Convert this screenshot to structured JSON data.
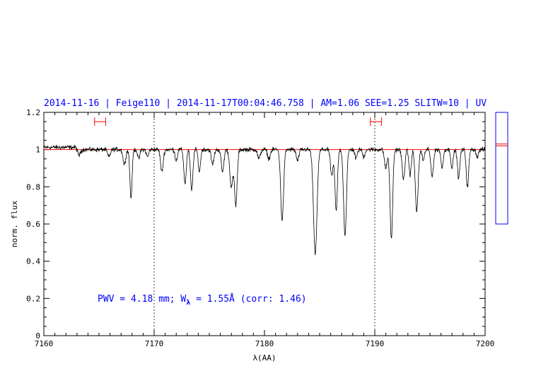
{
  "chart_data": {
    "type": "line",
    "title": "2014-11-16 | Feige110 | 2014-11-17T00:04:46.758 | AM=1.06  SEE=1.25  SLITW=10 | UV",
    "xlabel": "λ(AA)",
    "ylabel": "norm. flux",
    "xlim": [
      7160,
      7200
    ],
    "ylim": [
      0,
      1.2
    ],
    "x_ticks": [
      7160,
      7170,
      7180,
      7190,
      7200
    ],
    "x_tick_labels": [
      "7160",
      "7170",
      "7180",
      "7190",
      "7200"
    ],
    "y_ticks": [
      0,
      0.2,
      0.4,
      0.6,
      0.8,
      1,
      1.2
    ],
    "y_tick_labels": [
      "0",
      "0.2",
      "0.4",
      "0.6",
      "0.8",
      "1",
      "1.2"
    ],
    "grid": false,
    "continuum_level": 1.0,
    "vertical_markers": [
      7170,
      7190
    ],
    "range_markers": [
      {
        "from": 7164.6,
        "to": 7165.6,
        "y": 1.15
      },
      {
        "from": 7189.6,
        "to": 7190.6,
        "y": 1.15
      }
    ],
    "annotation": {
      "text_prefix": "PWV = 4.18 mm; W",
      "subscript": "λ",
      "text_suffix": " = 1.55Å (corr: 1.46)"
    },
    "absorption_lines": [
      {
        "x": 7163.2,
        "depth": 0.03,
        "width": 0.12
      },
      {
        "x": 7165.9,
        "depth": 0.04,
        "width": 0.12
      },
      {
        "x": 7167.3,
        "depth": 0.08,
        "width": 0.12
      },
      {
        "x": 7167.9,
        "depth": 0.26,
        "width": 0.1
      },
      {
        "x": 7168.6,
        "depth": 0.05,
        "width": 0.1
      },
      {
        "x": 7169.4,
        "depth": 0.04,
        "width": 0.1
      },
      {
        "x": 7170.7,
        "depth": 0.12,
        "width": 0.12
      },
      {
        "x": 7172.0,
        "depth": 0.06,
        "width": 0.1
      },
      {
        "x": 7172.8,
        "depth": 0.18,
        "width": 0.11
      },
      {
        "x": 7173.4,
        "depth": 0.22,
        "width": 0.11
      },
      {
        "x": 7174.1,
        "depth": 0.12,
        "width": 0.1
      },
      {
        "x": 7175.3,
        "depth": 0.08,
        "width": 0.12
      },
      {
        "x": 7176.2,
        "depth": 0.12,
        "width": 0.12
      },
      {
        "x": 7177.0,
        "depth": 0.2,
        "width": 0.14
      },
      {
        "x": 7177.4,
        "depth": 0.3,
        "width": 0.12
      },
      {
        "x": 7179.5,
        "depth": 0.05,
        "width": 0.12
      },
      {
        "x": 7180.4,
        "depth": 0.05,
        "width": 0.12
      },
      {
        "x": 7181.6,
        "depth": 0.38,
        "width": 0.13
      },
      {
        "x": 7183.0,
        "depth": 0.06,
        "width": 0.12
      },
      {
        "x": 7184.6,
        "depth": 0.56,
        "width": 0.16
      },
      {
        "x": 7186.1,
        "depth": 0.14,
        "width": 0.12
      },
      {
        "x": 7186.5,
        "depth": 0.33,
        "width": 0.11
      },
      {
        "x": 7187.3,
        "depth": 0.46,
        "width": 0.13
      },
      {
        "x": 7188.3,
        "depth": 0.05,
        "width": 0.1
      },
      {
        "x": 7189.0,
        "depth": 0.04,
        "width": 0.1
      },
      {
        "x": 7191.0,
        "depth": 0.1,
        "width": 0.12
      },
      {
        "x": 7191.5,
        "depth": 0.48,
        "width": 0.12
      },
      {
        "x": 7192.6,
        "depth": 0.16,
        "width": 0.12
      },
      {
        "x": 7193.2,
        "depth": 0.14,
        "width": 0.1
      },
      {
        "x": 7193.8,
        "depth": 0.33,
        "width": 0.13
      },
      {
        "x": 7194.4,
        "depth": 0.06,
        "width": 0.1
      },
      {
        "x": 7195.2,
        "depth": 0.14,
        "width": 0.12
      },
      {
        "x": 7196.1,
        "depth": 0.1,
        "width": 0.1
      },
      {
        "x": 7197.0,
        "depth": 0.1,
        "width": 0.1
      },
      {
        "x": 7197.6,
        "depth": 0.15,
        "width": 0.11
      },
      {
        "x": 7198.4,
        "depth": 0.2,
        "width": 0.11
      },
      {
        "x": 7199.3,
        "depth": 0.04,
        "width": 0.1
      }
    ],
    "side_panel": {
      "marker_values": [
        1.02,
        1.03
      ]
    },
    "colors": {
      "title": "#0000ff",
      "annotation": "#0000ff",
      "spectrum": "#000000",
      "continuum": "#ff0000",
      "range_marker": "#ff0000",
      "side_panel_border": "#0000ff",
      "side_panel_marker": "#ff0000"
    }
  }
}
